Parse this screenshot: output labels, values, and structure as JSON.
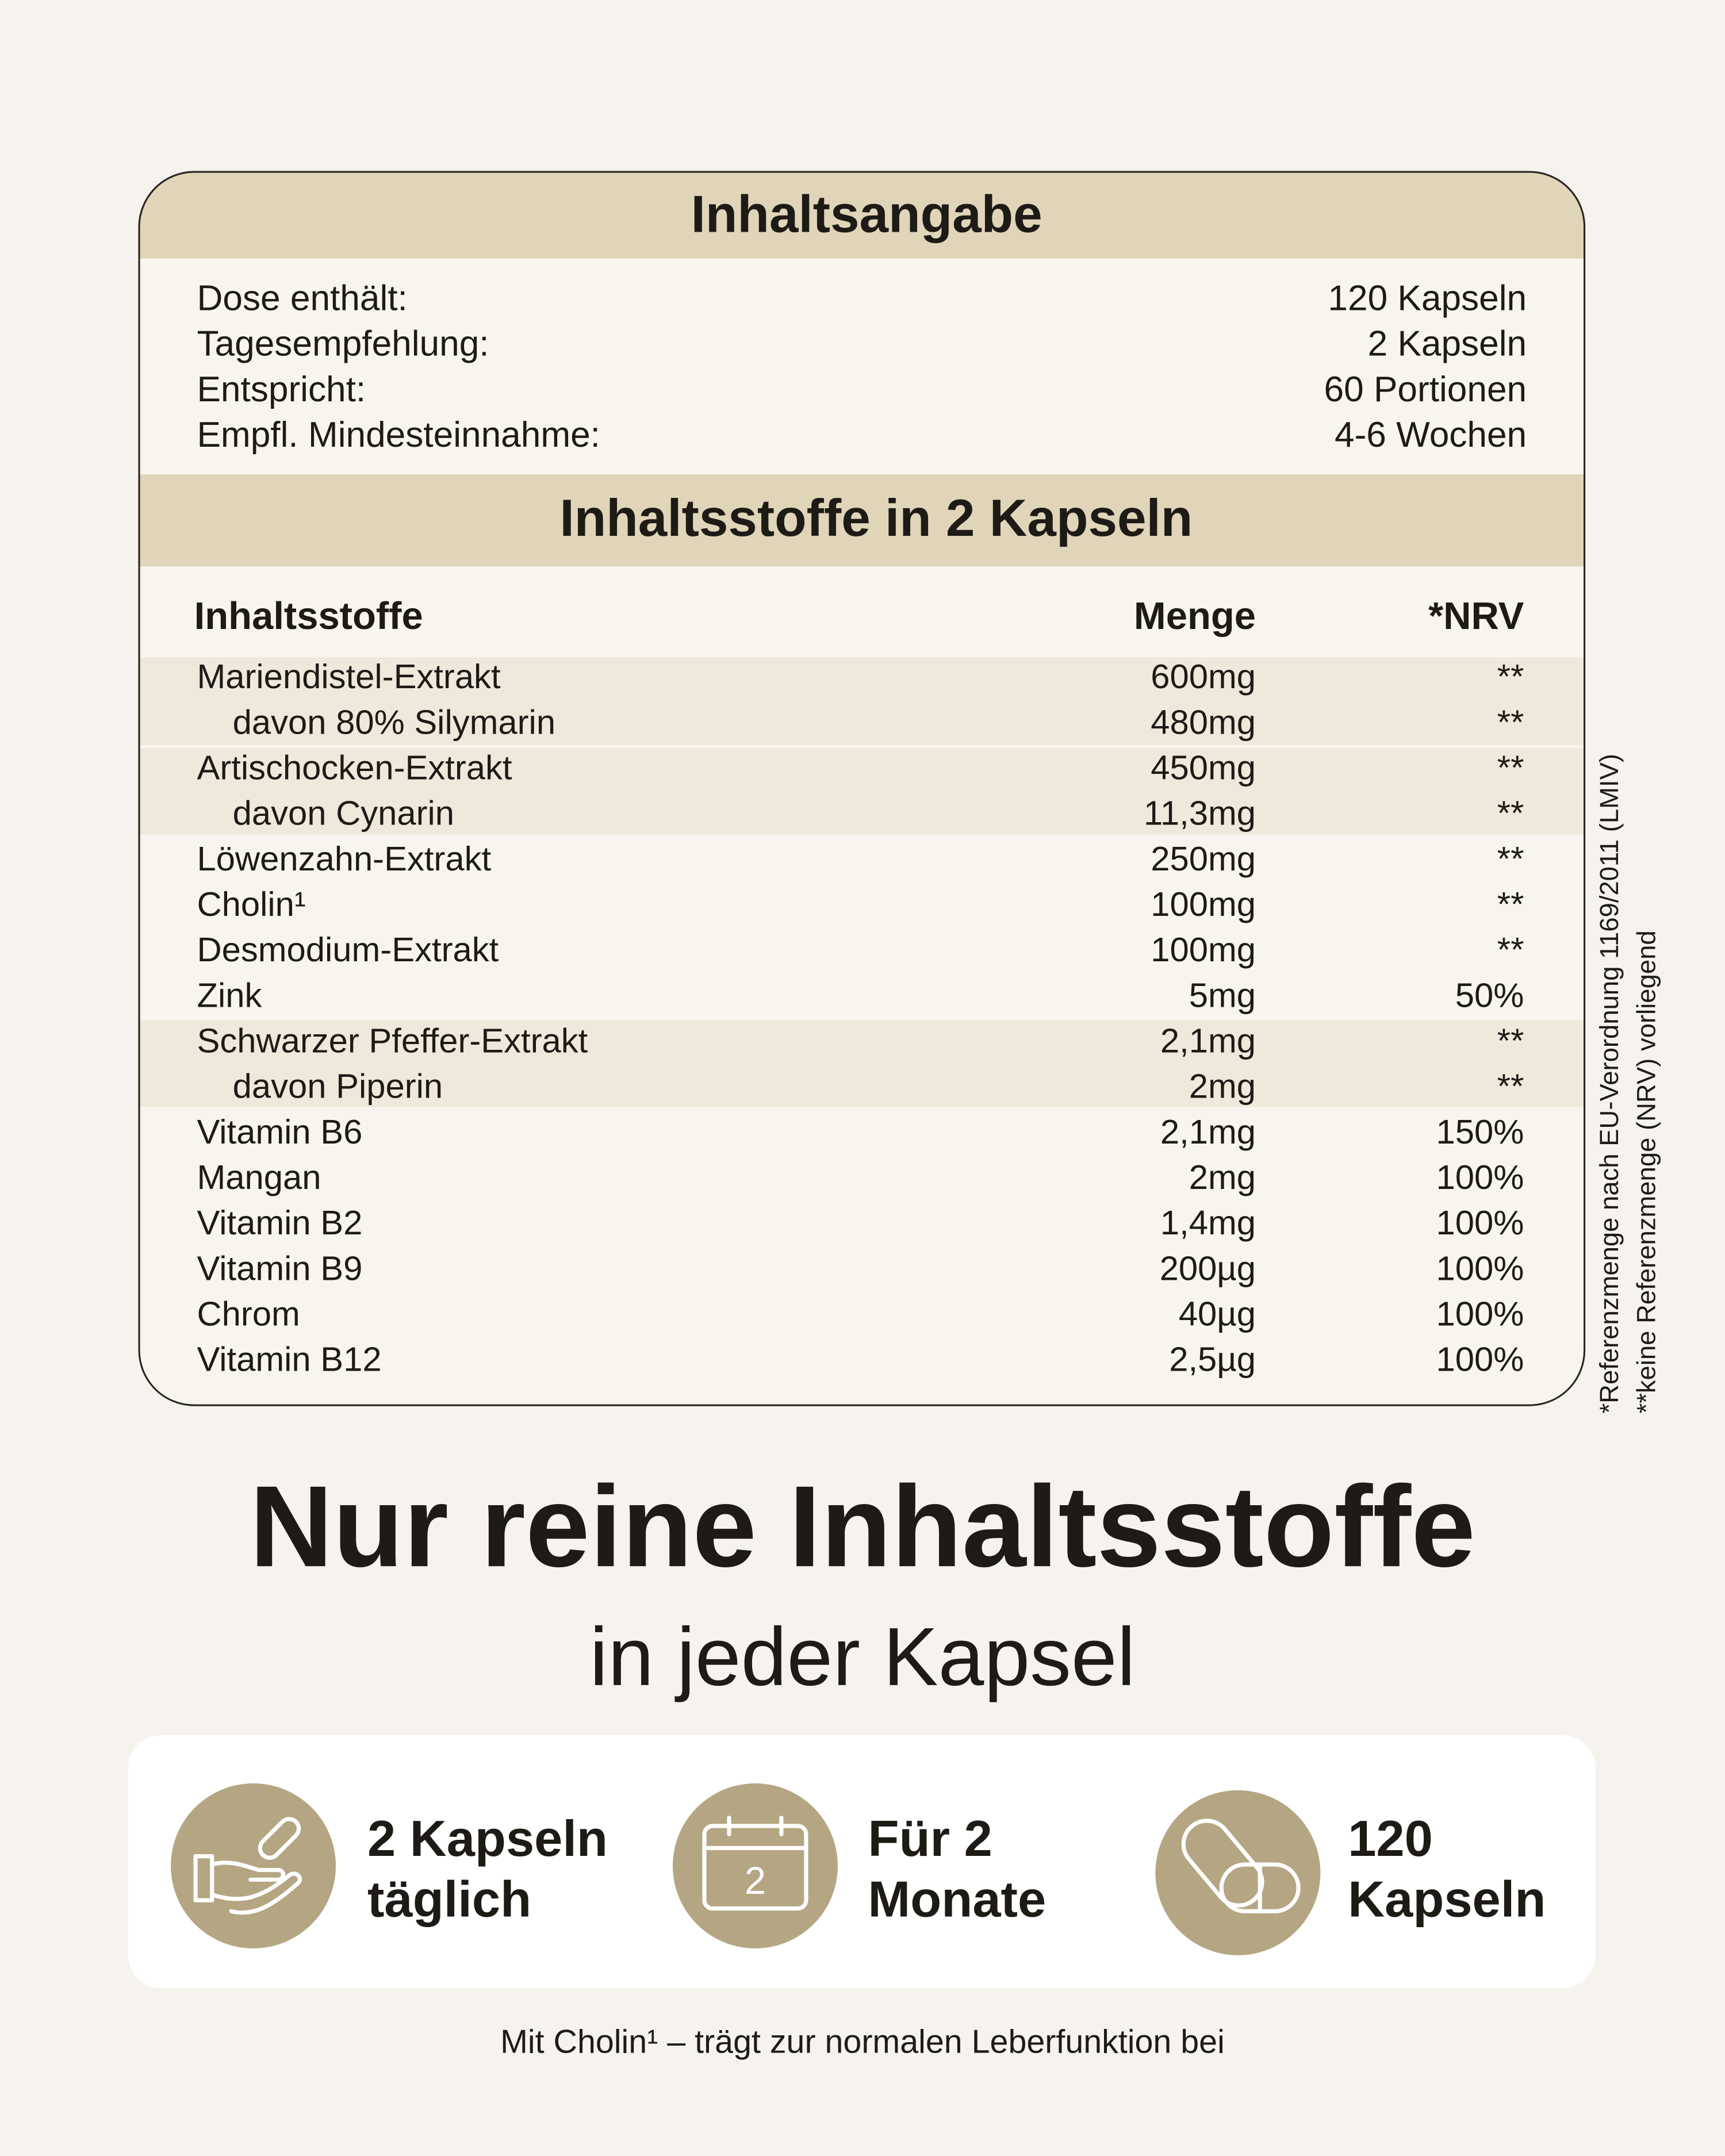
{
  "header": {
    "title": "Inhaltsangabe"
  },
  "summary": [
    [
      "Dose enthält:",
      "120 Kapseln"
    ],
    [
      "Tagesempfehlung:",
      "2 Kapseln"
    ],
    [
      "Entspricht:",
      "60 Portionen"
    ],
    [
      "Empfl. Mindesteinnahme:",
      "4-6 Wochen"
    ]
  ],
  "section_title": "Inhaltsstoffe in 2 Kapseln",
  "table": {
    "columns": [
      "Inhaltsstoffe",
      "Menge",
      "*NRV"
    ],
    "rows": [
      [
        "Mariendistel-Extrakt",
        "600mg",
        "**"
      ],
      [
        "davon 80% Silymarin",
        "480mg",
        "**"
      ],
      [
        "Artischocken-Extrakt",
        "450mg",
        "**"
      ],
      [
        "davon Cynarin",
        "11,3mg",
        "**"
      ],
      [
        "Löwenzahn-Extrakt",
        "250mg",
        "**"
      ],
      [
        "Cholin¹",
        "100mg",
        "**"
      ],
      [
        "Desmodium-Extrakt",
        "100mg",
        "**"
      ],
      [
        "Zink",
        "5mg",
        "50%"
      ],
      [
        "Schwarzer Pfeffer-Extrakt",
        "2,1mg",
        "**"
      ],
      [
        "davon Piperin",
        "2mg",
        "**"
      ],
      [
        "Vitamin B6",
        "2,1mg",
        "150%"
      ],
      [
        "Mangan",
        "2mg",
        "100%"
      ],
      [
        "Vitamin B2",
        "1,4mg",
        "100%"
      ],
      [
        "Vitamin B9",
        "200µg",
        "100%"
      ],
      [
        "Chrom",
        "40µg",
        "100%"
      ],
      [
        "Vitamin B12",
        "2,5µg",
        "100%"
      ]
    ]
  },
  "side_notes": [
    "*Referenzmenge nach EU-Verordnung 1169/2011 (LMIV)",
    "**keine Referenzmenge (NRV) vorliegend"
  ],
  "headline": "Nur reine Inhaltsstoffe",
  "subline": "in jeder Kapsel",
  "features": [
    {
      "lines": [
        "2 Kapseln",
        "täglich"
      ]
    },
    {
      "icon_text": "2",
      "lines": [
        "Für 2",
        "Monate"
      ]
    },
    {
      "lines": [
        "120",
        "Kapseln"
      ]
    }
  ],
  "footer": "Mit Cholin¹ – trägt zur normalen Leberfunktion bei"
}
